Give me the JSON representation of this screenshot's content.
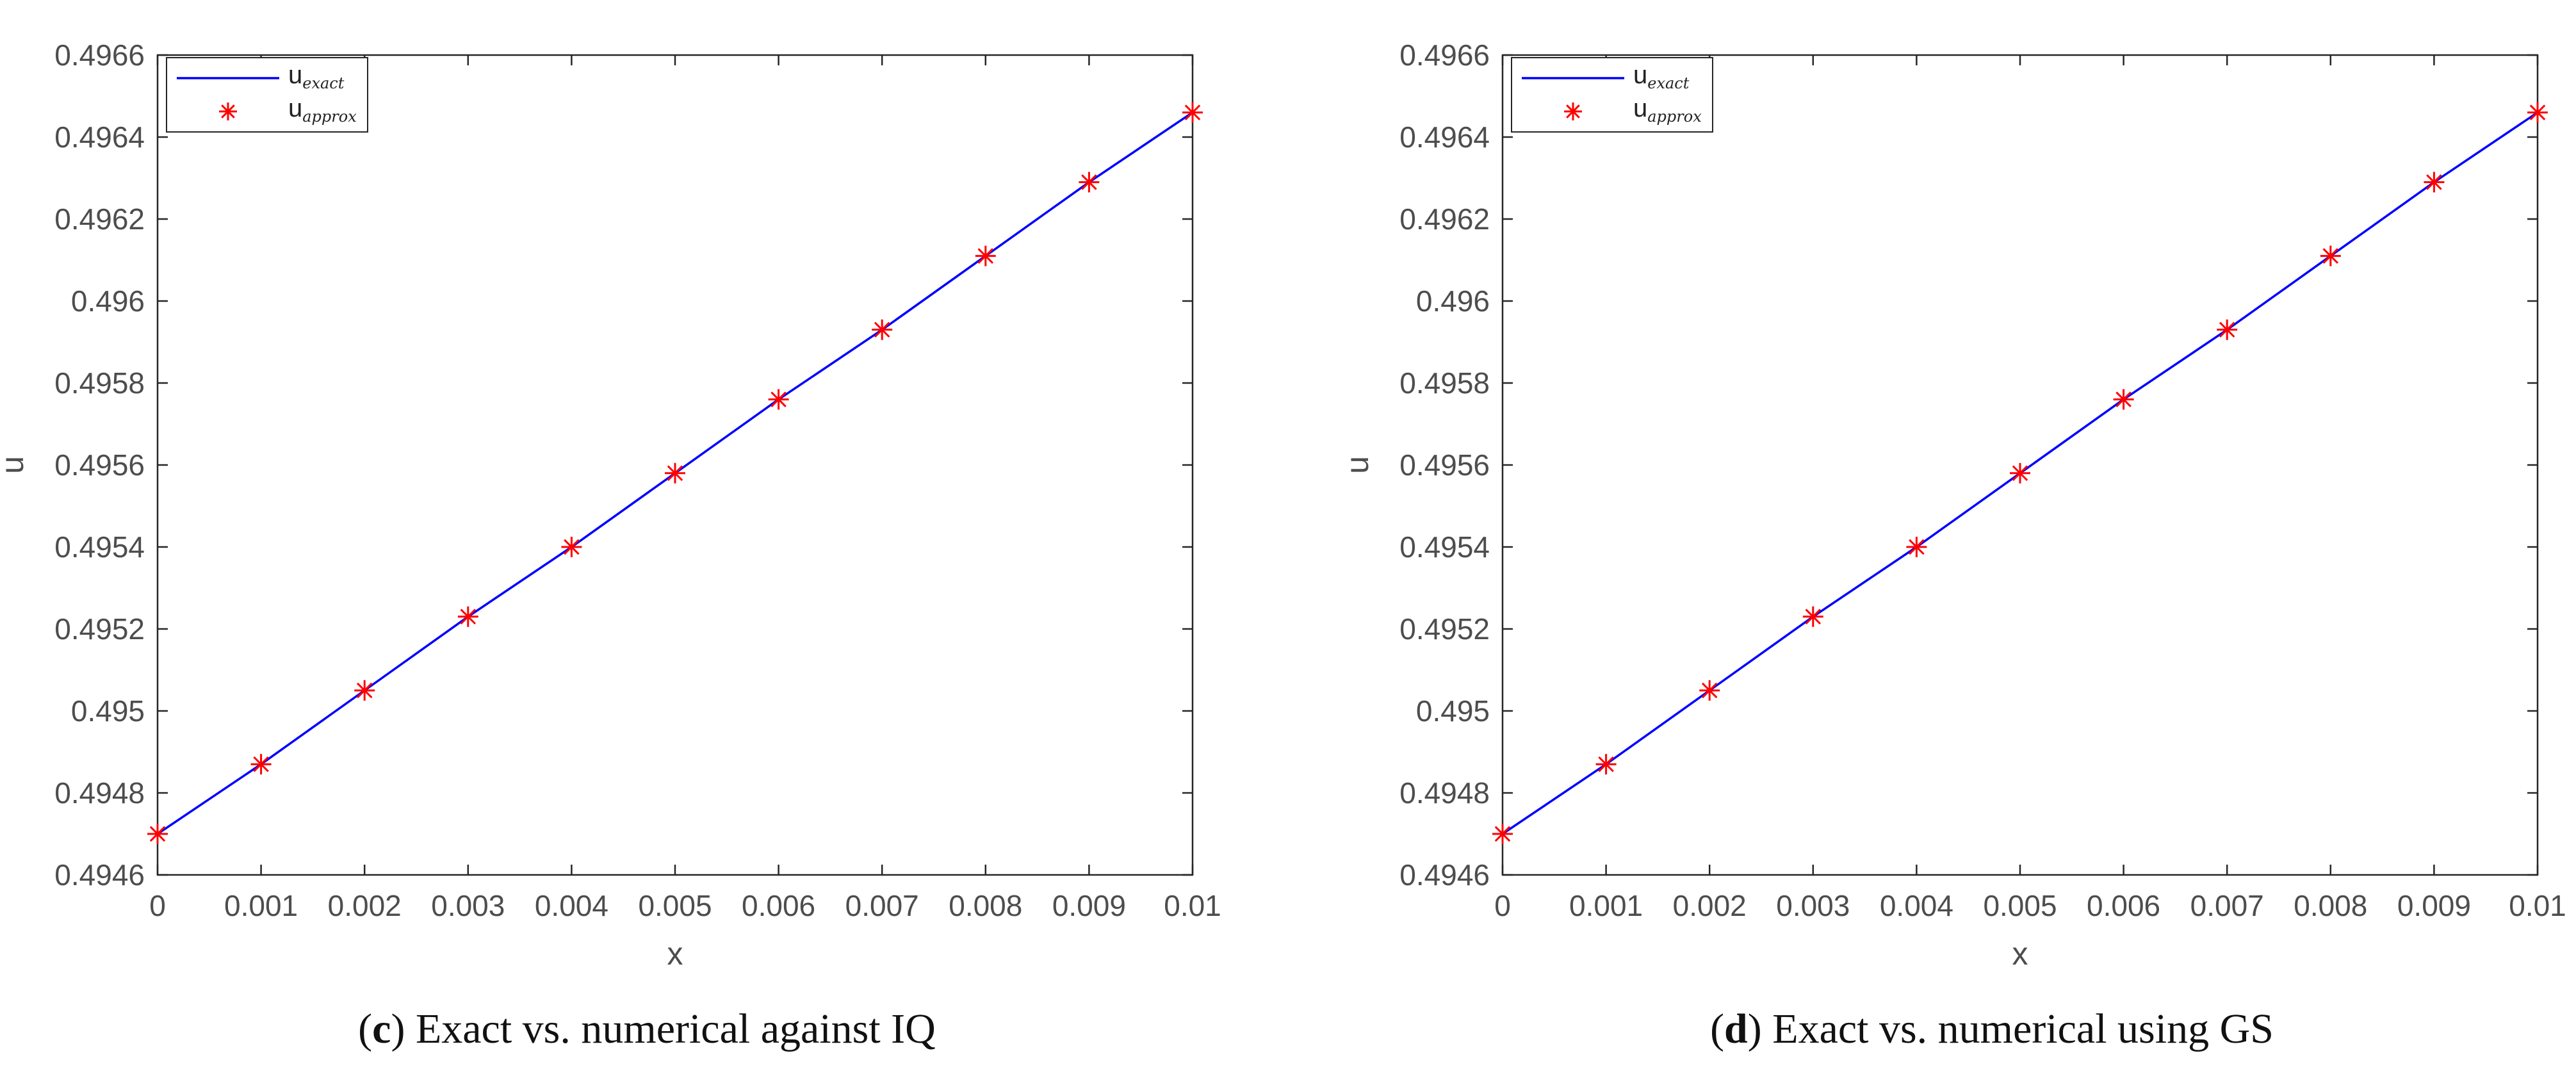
{
  "chart_data": [
    {
      "type": "line",
      "panel_letter": "c",
      "caption_text": " Exact vs. numerical against IQ",
      "xlabel": "x",
      "ylabel": "u",
      "xlim": [
        0,
        0.01
      ],
      "ylim": [
        0.4946,
        0.4966
      ],
      "grid": false,
      "legend_position": "top-left",
      "x_ticks": [
        "0",
        "0.001",
        "0.002",
        "0.003",
        "0.004",
        "0.005",
        "0.006",
        "0.007",
        "0.008",
        "0.009",
        "0.01"
      ],
      "y_ticks": [
        "0.4946",
        "0.4948",
        "0.495",
        "0.4952",
        "0.4954",
        "0.4956",
        "0.4958",
        "0.496",
        "0.4962",
        "0.4964",
        "0.4966"
      ],
      "x": [
        0,
        0.001,
        0.002,
        0.003,
        0.004,
        0.005,
        0.006,
        0.007,
        0.008,
        0.009,
        0.01
      ],
      "series": [
        {
          "name": "u_exact",
          "legend_main": "u",
          "legend_sub": "exact",
          "style": "line",
          "color": "#0000ff",
          "values": [
            0.4947,
            0.49487,
            0.49505,
            0.49523,
            0.4954,
            0.49558,
            0.49576,
            0.49593,
            0.49611,
            0.49629,
            0.49646
          ]
        },
        {
          "name": "u_approx",
          "legend_main": "u",
          "legend_sub": "approx",
          "style": "marker",
          "color": "#ff0000",
          "values": [
            0.4947,
            0.49487,
            0.49505,
            0.49523,
            0.4954,
            0.49558,
            0.49576,
            0.49593,
            0.49611,
            0.49629,
            0.49646
          ]
        }
      ]
    },
    {
      "type": "line",
      "panel_letter": "d",
      "caption_text": " Exact vs. numerical using GS",
      "xlabel": "x",
      "ylabel": "u",
      "xlim": [
        0,
        0.01
      ],
      "ylim": [
        0.4946,
        0.4966
      ],
      "grid": false,
      "legend_position": "top-left",
      "x_ticks": [
        "0",
        "0.001",
        "0.002",
        "0.003",
        "0.004",
        "0.005",
        "0.006",
        "0.007",
        "0.008",
        "0.009",
        "0.01"
      ],
      "y_ticks": [
        "0.4946",
        "0.4948",
        "0.495",
        "0.4952",
        "0.4954",
        "0.4956",
        "0.4958",
        "0.496",
        "0.4962",
        "0.4964",
        "0.4966"
      ],
      "x": [
        0,
        0.001,
        0.002,
        0.003,
        0.004,
        0.005,
        0.006,
        0.007,
        0.008,
        0.009,
        0.01
      ],
      "series": [
        {
          "name": "u_exact",
          "legend_main": "u",
          "legend_sub": "exact",
          "style": "line",
          "color": "#0000ff",
          "values": [
            0.4947,
            0.49487,
            0.49505,
            0.49523,
            0.4954,
            0.49558,
            0.49576,
            0.49593,
            0.49611,
            0.49629,
            0.49646
          ]
        },
        {
          "name": "u_approx",
          "legend_main": "u",
          "legend_sub": "approx",
          "style": "marker",
          "color": "#ff0000",
          "values": [
            0.4947,
            0.49487,
            0.49505,
            0.49523,
            0.4954,
            0.49558,
            0.49576,
            0.49593,
            0.49611,
            0.49629,
            0.49646
          ]
        }
      ]
    }
  ]
}
